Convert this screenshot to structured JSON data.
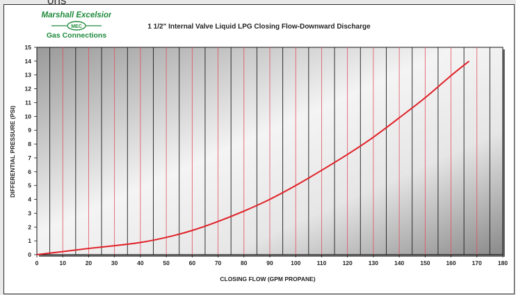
{
  "page": {
    "top_fragment": "ons"
  },
  "logo": {
    "line1": "Marshall Excelsior",
    "badge": "MEC",
    "line2": "Gas Connections"
  },
  "colors": {
    "curve": "#e01f26",
    "red_grid": "#e05060",
    "dark_grid": "#1a1a1a"
  },
  "chart_data": {
    "type": "line",
    "title": "1 1/2\" Internal Valve Liquid LPG Closing Flow-Downward Discharge",
    "xlabel": "CLOSING FLOW (GPM PROPANE)",
    "ylabel": "DIFFERENTIAL PRESSURE (PSI)",
    "xlim": [
      0,
      180
    ],
    "ylim": [
      0,
      15
    ],
    "x_ticks": [
      "0",
      "10",
      "20",
      "30",
      "40",
      "50",
      "60",
      "70",
      "80",
      "90",
      "100",
      "110",
      "120",
      "130",
      "140",
      "150",
      "160",
      "170",
      "180"
    ],
    "y_ticks": [
      "0",
      "1",
      "2",
      "3",
      "4",
      "5",
      "6",
      "7",
      "8",
      "9",
      "10",
      "11",
      "12",
      "13",
      "14",
      "15"
    ],
    "grid": true,
    "series": [
      {
        "x": [
          0,
          10,
          20,
          30,
          40,
          50,
          60,
          70,
          80,
          90,
          100,
          110,
          120,
          130,
          140,
          150,
          160,
          167
        ],
        "y": [
          0,
          0.22,
          0.45,
          0.65,
          0.88,
          1.25,
          1.75,
          2.4,
          3.15,
          4.0,
          5.0,
          6.1,
          7.25,
          8.5,
          9.9,
          11.35,
          12.95,
          14.0
        ]
      }
    ]
  }
}
